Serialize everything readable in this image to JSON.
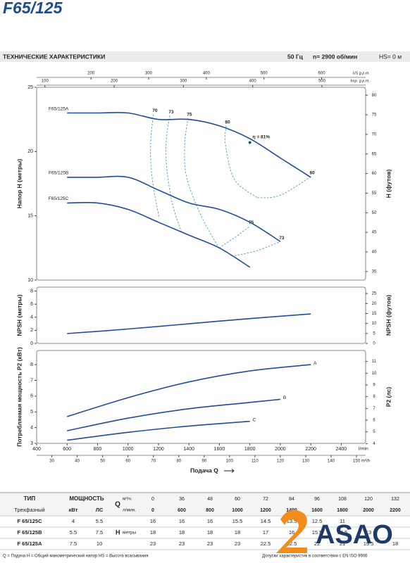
{
  "header": {
    "title": "F65/125",
    "section": "ТЕХНИЧЕСКИЕ ХАРАКТЕРИСТИКИ",
    "frequency": "50 Гц",
    "speed": "n= 2900 об/мин",
    "suction": "HS= 0 м"
  },
  "chart_data": [
    {
      "type": "line",
      "ylabel": "Напор H (метры)",
      "y2label": "H (футов)",
      "xlim": [
        400,
        2560
      ],
      "ylim": [
        10,
        25
      ],
      "yticks": [
        10,
        15,
        20,
        25
      ],
      "y2lim": [
        32.81,
        82.02
      ],
      "y2ticks": [
        35,
        40,
        45,
        50,
        55,
        60,
        65,
        70,
        75,
        80
      ],
      "top_axes": [
        {
          "unit": "US g.p.m.",
          "lim": [
            105.7,
            676.3
          ],
          "ticks": [
            200,
            300,
            400,
            500,
            600
          ]
        },
        {
          "unit": "Imp. g.p.m.",
          "lim": [
            88,
            563.1
          ],
          "ticks": [
            100,
            200,
            300,
            400,
            500
          ]
        }
      ],
      "series": [
        {
          "name": "F65/125A",
          "color": "#1f4e96",
          "x": [
            600,
            800,
            1000,
            1200,
            1400,
            1600,
            1800,
            2000,
            2200
          ],
          "values": [
            23,
            23,
            23,
            22.5,
            22.5,
            22,
            21,
            19.5,
            18
          ]
        },
        {
          "name": "F65/125B",
          "color": "#1f4e96",
          "x": [
            600,
            800,
            1000,
            1200,
            1400,
            1600,
            1800,
            2000
          ],
          "values": [
            18,
            18,
            18,
            17,
            16,
            15.5,
            14.5,
            13
          ]
        },
        {
          "name": "F65/125C",
          "color": "#1f4e96",
          "x": [
            600,
            800,
            1000,
            1200,
            1400,
            1600,
            1800
          ],
          "values": [
            16,
            16,
            15.5,
            14.5,
            13.5,
            12.5,
            11
          ]
        }
      ],
      "efficiency_color": "#4a9ad8",
      "efficiency_curves": [
        {
          "name": "70",
          "x": [
            1167,
            1150,
            1150,
            1170,
            1204
          ],
          "values": [
            22.9,
            21,
            19,
            17,
            14.9
          ]
        },
        {
          "name": "73",
          "x": [
            1274,
            1252,
            1252,
            1290,
            1352
          ],
          "values": [
            22.8,
            21,
            19,
            16,
            13.7
          ]
        },
        {
          "name": "75",
          "x": [
            1394,
            1372,
            1385,
            1480,
            1597
          ],
          "values": [
            22.6,
            20.5,
            18,
            15,
            12.5
          ]
        },
        {
          "name": "75",
          "x": [
            1597,
            1700,
            1800
          ],
          "values": [
            12.5,
            13.3,
            14.2
          ]
        },
        {
          "name": "73",
          "x": [
            1700,
            1850,
            2000
          ],
          "values": [
            11.9,
            12.3,
            13
          ]
        },
        {
          "name": "80",
          "x": [
            1644,
            1640,
            1700,
            1850
          ],
          "values": [
            22,
            20.5,
            17.8,
            16.4
          ]
        },
        {
          "name": "80",
          "x": [
            1850,
            2000,
            2200
          ],
          "values": [
            16.4,
            16.6,
            18.05
          ]
        }
      ],
      "points": [
        {
          "label": "η = 81%",
          "x": 1800,
          "y": 20.7
        }
      ]
    },
    {
      "type": "line",
      "ylabel": "NPSH (метры)",
      "y2label": "NPSH (футов)",
      "xlim": [
        400,
        2560
      ],
      "ylim": [
        0,
        8.6
      ],
      "yticks": [
        0,
        2,
        4,
        6,
        8
      ],
      "y2lim": [
        0,
        28.2
      ],
      "y2ticks": [
        0,
        5,
        10,
        15,
        20,
        25
      ],
      "series": [
        {
          "color": "#1f4e96",
          "x": [
            600,
            1000,
            1400,
            1800,
            2200
          ],
          "values": [
            1.5,
            2.2,
            3,
            3.8,
            4.5
          ]
        }
      ]
    },
    {
      "type": "line",
      "ylabel": "Потребляемая мощность P2 (кВт)",
      "y2label": "P2 (лс)",
      "xlabel": "Подача Q",
      "xunit": "l/min",
      "xlim": [
        400,
        2560
      ],
      "xticks": [
        400,
        600,
        800,
        1000,
        1200,
        1400,
        1600,
        1800,
        2000,
        2200,
        2400
      ],
      "x2unit": "m³/h",
      "x2lim": [
        24,
        153.6
      ],
      "x2ticks": [
        30,
        40,
        50,
        60,
        70,
        80,
        90,
        100,
        110,
        120,
        130,
        140,
        150
      ],
      "ylim": [
        3,
        8.9
      ],
      "yticks": [
        3,
        4,
        5,
        6,
        7,
        8
      ],
      "y2lim": [
        4.02,
        11.94
      ],
      "y2ticks": [
        4,
        5,
        6,
        7,
        8,
        9,
        10,
        11
      ],
      "series": [
        {
          "name": "A",
          "color": "#1f4e96",
          "x": [
            600,
            1000,
            1400,
            1800,
            2200
          ],
          "values": [
            4.7,
            5.9,
            6.9,
            7.6,
            8
          ]
        },
        {
          "name": "B",
          "color": "#1f4e96",
          "x": [
            600,
            1000,
            1400,
            1800,
            2000
          ],
          "values": [
            3.8,
            4.6,
            5.2,
            5.6,
            5.8
          ]
        },
        {
          "name": "C",
          "color": "#1f4e96",
          "x": [
            600,
            1000,
            1400,
            1800
          ],
          "values": [
            3.2,
            3.7,
            4.1,
            4.4
          ]
        }
      ]
    }
  ],
  "table": {
    "type_header": "ТИП",
    "phase": "Трехфазный",
    "power_header": "МОЩНОСТЬ",
    "kw": "кВт",
    "hp": "ЛС",
    "q": "Q",
    "q_m3h": "м³/ч.",
    "q_lmin": "л/мин.",
    "h": "H",
    "h_unit": "метры",
    "flow_m3h": [
      0,
      36,
      48,
      60,
      72,
      84,
      96,
      108,
      120,
      132
    ],
    "flow_lmin": [
      0,
      600,
      800,
      1000,
      1200,
      1400,
      1600,
      1800,
      2000,
      2200
    ],
    "rows": [
      {
        "model": "F 65/125C",
        "kw": 4,
        "hp": 5.5,
        "head": [
          16,
          16,
          16,
          15.5,
          14.5,
          13.5,
          12.5,
          11
        ]
      },
      {
        "model": "F 65/125B",
        "kw": 5.5,
        "hp": 7.5,
        "head": [
          18,
          18,
          18,
          18,
          17,
          16,
          15.5,
          14.5,
          13
        ]
      },
      {
        "model": "F 65/125A",
        "kw": 7.5,
        "hp": 10,
        "head": [
          23,
          23,
          23,
          23,
          22.5,
          22.5,
          22,
          21,
          19.5,
          18
        ]
      }
    ]
  },
  "footer": {
    "legend": "Q = Подача   H = Общий манометрический напор   HS = Высота всасывания",
    "tolerance": "Допуски характеристик в соответствии с EN ISO 9906"
  },
  "logo": "ASAO"
}
